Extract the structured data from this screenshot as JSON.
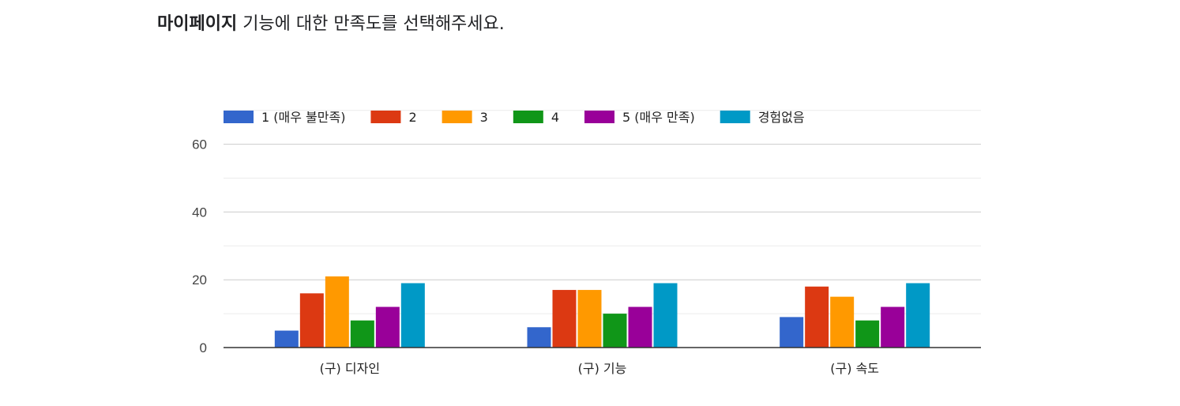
{
  "question": {
    "bold": "마이페이지",
    "rest": " 기능에 대한 만족도를 선택해주세요."
  },
  "chart_data": {
    "type": "bar",
    "categories": [
      "(구) 디자인",
      "(구) 기능",
      "(구) 속도"
    ],
    "series": [
      {
        "name": "1 (매우 불만족)",
        "color": "#3366cc",
        "values": [
          5,
          6,
          9
        ]
      },
      {
        "name": "2",
        "color": "#dc3912",
        "values": [
          16,
          17,
          18
        ]
      },
      {
        "name": "3",
        "color": "#ff9900",
        "values": [
          21,
          17,
          15
        ]
      },
      {
        "name": "4",
        "color": "#109618",
        "values": [
          8,
          10,
          8
        ]
      },
      {
        "name": "5 (매우 만족)",
        "color": "#990099",
        "values": [
          12,
          12,
          12
        ]
      },
      {
        "name": "경험없음",
        "color": "#0099c6",
        "values": [
          19,
          19,
          19
        ]
      }
    ],
    "ylim": [
      0,
      70
    ],
    "yticks": [
      0,
      20,
      40,
      60
    ],
    "grid": true,
    "legend_position": "top"
  }
}
